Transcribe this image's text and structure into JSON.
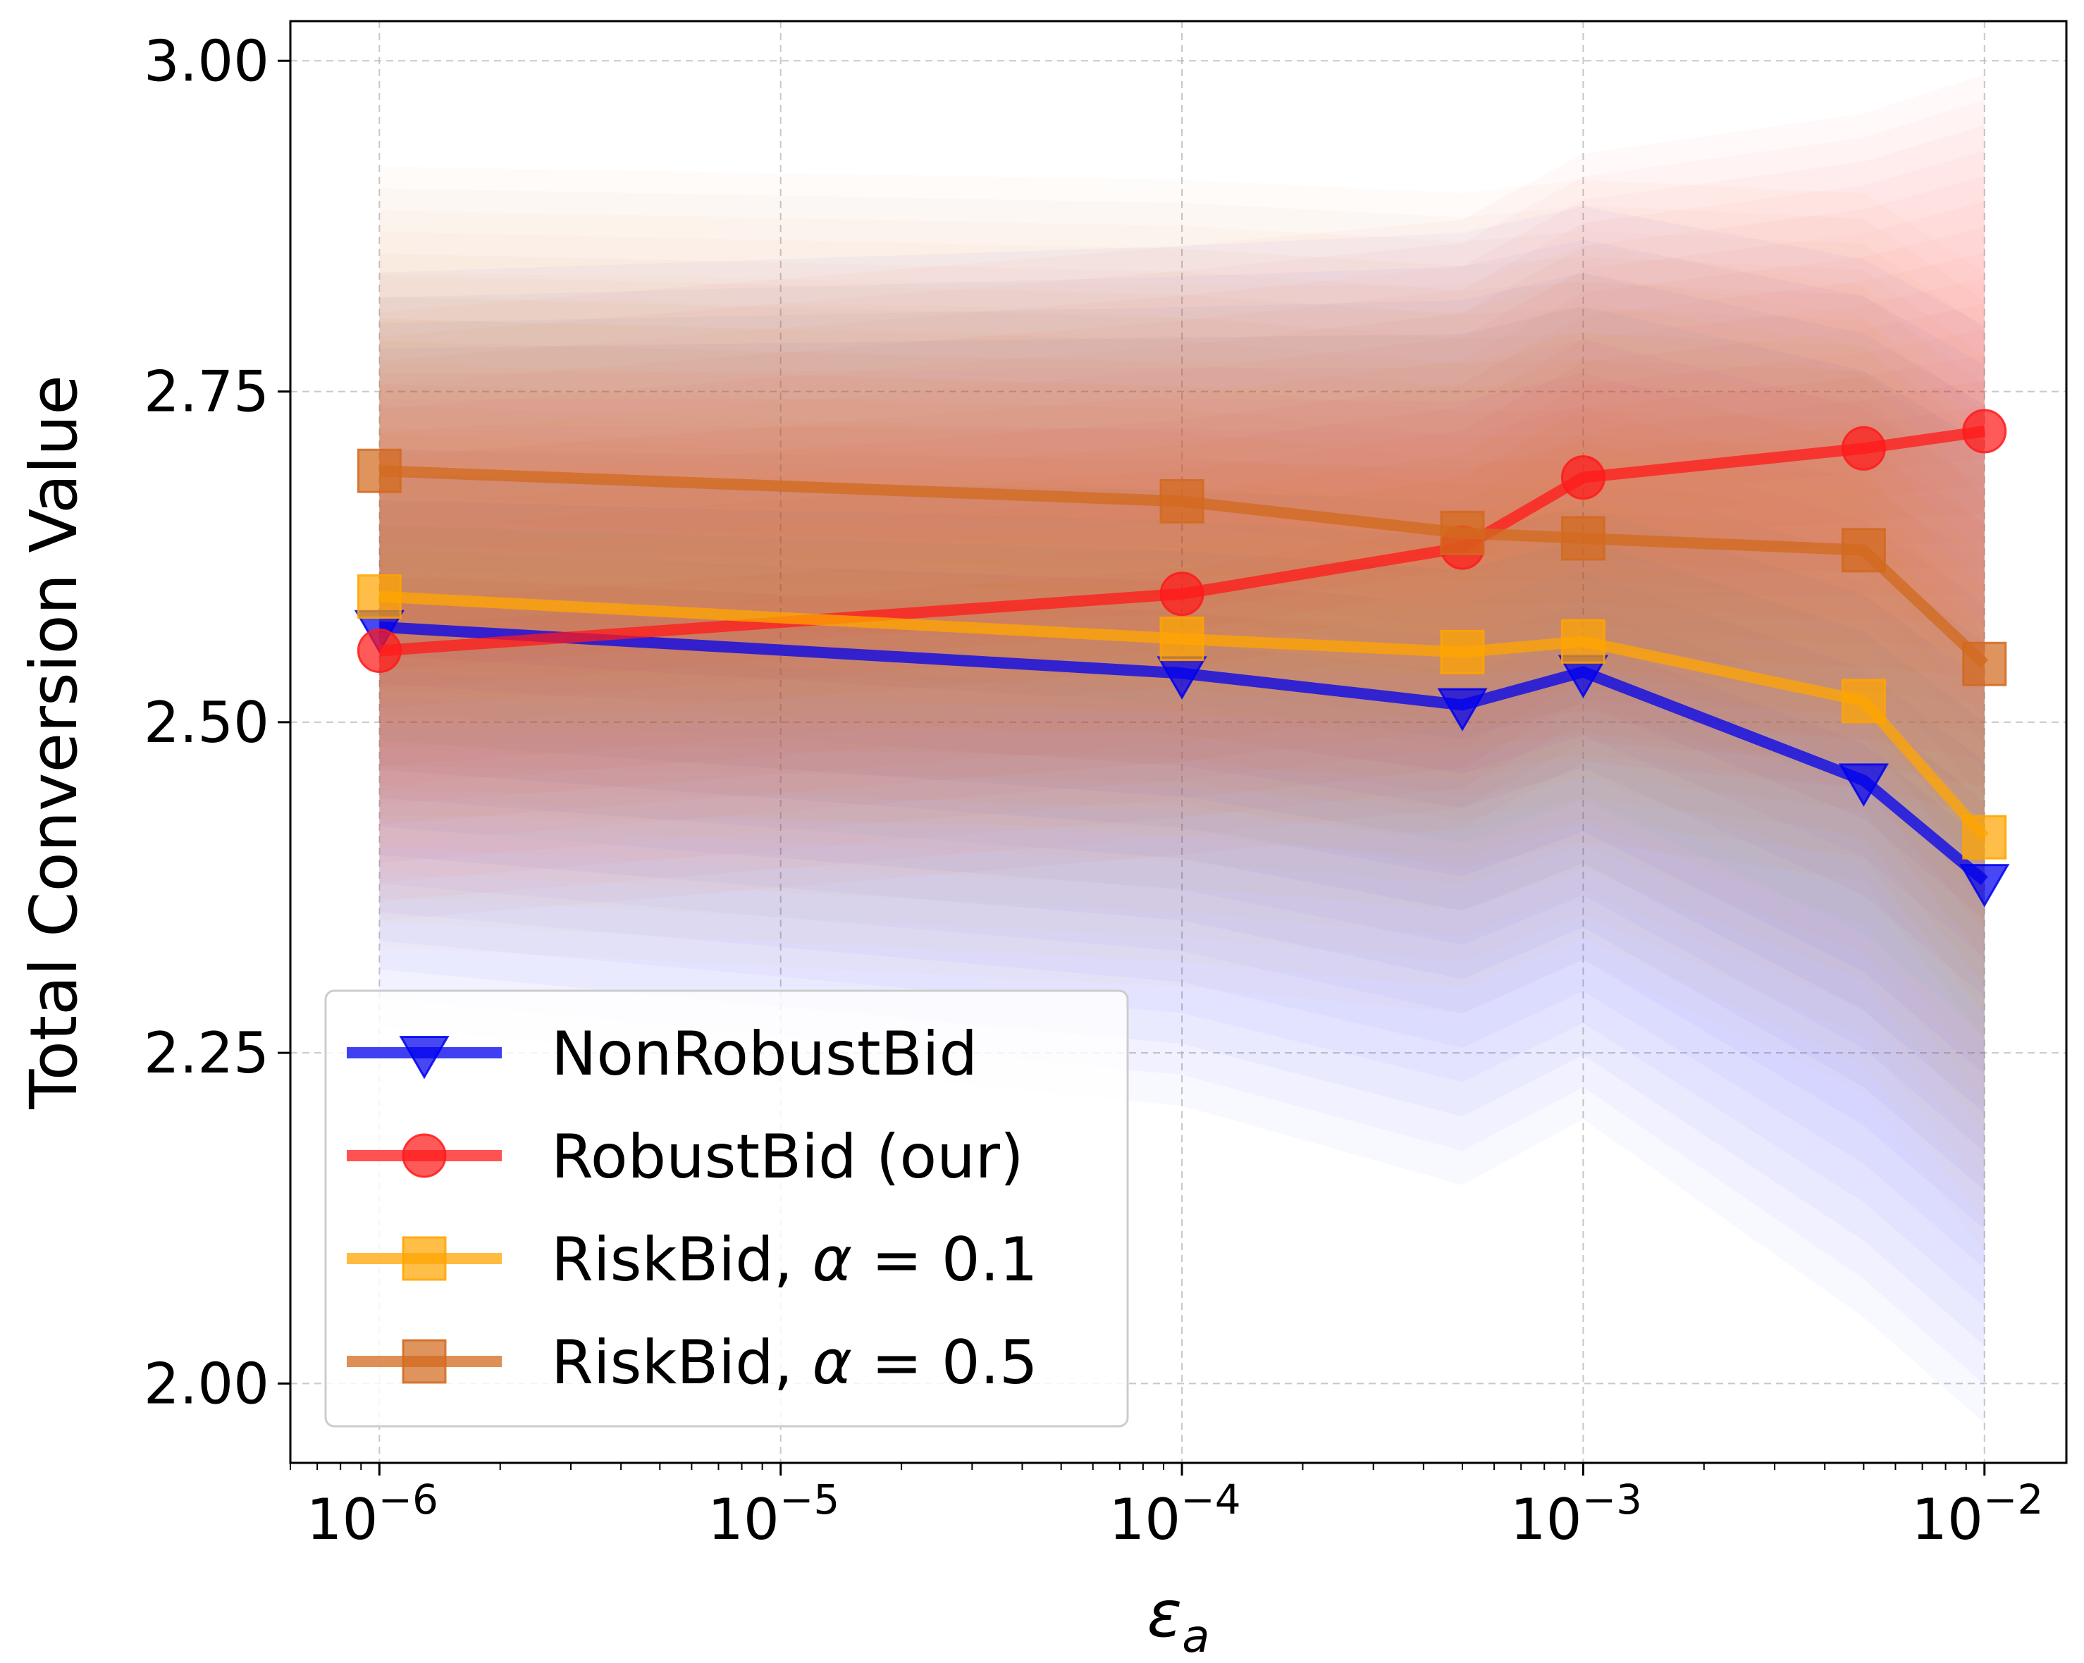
{
  "chart_data": {
    "type": "line",
    "title": "",
    "xlabel": "ε",
    "xlabel_subscript": "a",
    "ylabel": "Total Conversion Value",
    "xscale": "log",
    "x": [
      1e-06,
      0.0001,
      0.0005,
      0.001,
      0.005,
      0.01
    ],
    "xlim": [
      6e-07,
      0.016
    ],
    "ylim": [
      1.94,
      3.03
    ],
    "x_ticks": [
      {
        "value": 1e-06,
        "base": "10",
        "exp": "−6"
      },
      {
        "value": 1e-05,
        "base": "10",
        "exp": "−5"
      },
      {
        "value": 0.0001,
        "base": "10",
        "exp": "−4"
      },
      {
        "value": 0.001,
        "base": "10",
        "exp": "−3"
      },
      {
        "value": 0.01,
        "base": "10",
        "exp": "−2"
      }
    ],
    "y_ticks": [
      {
        "value": 2.0,
        "label": "2.00"
      },
      {
        "value": 2.25,
        "label": "2.25"
      },
      {
        "value": 2.5,
        "label": "2.50"
      },
      {
        "value": 2.75,
        "label": "2.75"
      },
      {
        "value": 3.0,
        "label": "3.00"
      }
    ],
    "grid": true,
    "legend_position": "lower-left",
    "series": [
      {
        "name": "NonRobustBid",
        "color": "#0000ee",
        "marker": "triangle-down",
        "values": [
          2.572,
          2.537,
          2.513,
          2.538,
          2.456,
          2.38
        ],
        "band_low": [
          2.27,
          2.21,
          2.15,
          2.2,
          2.05,
          1.97
        ],
        "band_high": [
          2.84,
          2.86,
          2.87,
          2.89,
          2.85,
          2.8
        ]
      },
      {
        "name": "RobustBid (our)",
        "color": "#ff1a1a",
        "marker": "circle",
        "values": [
          2.554,
          2.597,
          2.632,
          2.685,
          2.707,
          2.72
        ],
        "band_low": [
          2.35,
          2.4,
          2.42,
          2.47,
          2.45,
          2.43
        ],
        "band_high": [
          2.81,
          2.86,
          2.88,
          2.93,
          2.96,
          2.99
        ]
      },
      {
        "name": "RiskBid, α = 0.1",
        "name_parts": [
          "RiskBid, ",
          "α",
          " = 0.1"
        ],
        "color": "#ffa500",
        "marker": "square",
        "values": [
          2.595,
          2.563,
          2.553,
          2.561,
          2.516,
          2.413
        ],
        "band_low": [
          2.33,
          2.3,
          2.28,
          2.32,
          2.22,
          2.1
        ],
        "band_high": [
          2.84,
          2.83,
          2.83,
          2.86,
          2.83,
          2.74
        ]
      },
      {
        "name": "RiskBid, α = 0.5",
        "name_parts": [
          "RiskBid, ",
          "α",
          " = 0.5"
        ],
        "color": "#d2691e",
        "marker": "square",
        "values": [
          2.69,
          2.667,
          2.643,
          2.639,
          2.63,
          2.544
        ],
        "band_low": [
          2.43,
          2.42,
          2.39,
          2.41,
          2.38,
          2.26
        ],
        "band_high": [
          2.92,
          2.91,
          2.9,
          2.91,
          2.9,
          2.84
        ]
      }
    ]
  }
}
